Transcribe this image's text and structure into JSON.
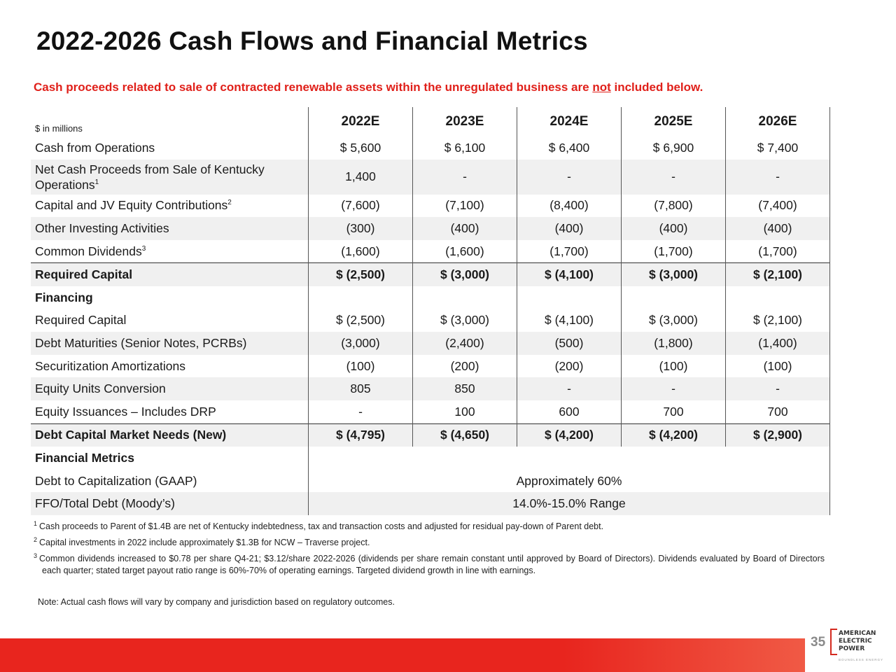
{
  "title": "2022-2026 Cash Flows and Financial Metrics",
  "subtitle": {
    "before": "Cash proceeds related to sale of contracted renewable assets within the unregulated business are ",
    "underlined": "not",
    "after": " included below."
  },
  "table": {
    "unit_label": "$ in millions",
    "columns": [
      "2022E",
      "2023E",
      "2024E",
      "2025E",
      "2026E"
    ],
    "rows": [
      {
        "label": "Cash from Operations",
        "sup": "",
        "values": [
          "$ 5,600",
          "$ 6,100",
          "$ 6,400",
          "$ 6,900",
          "$ 7,400"
        ]
      },
      {
        "label": "Net Cash Proceeds from Sale of Kentucky Operations",
        "sup": "1",
        "values": [
          "1,400",
          "-",
          "-",
          "-",
          "-"
        ]
      },
      {
        "label": "Capital and JV Equity Contributions",
        "sup": "2",
        "values": [
          "(7,600)",
          "(7,100)",
          "(8,400)",
          "(7,800)",
          "(7,400)"
        ]
      },
      {
        "label": "Other Investing Activities",
        "sup": "",
        "values": [
          "(300)",
          "(400)",
          "(400)",
          "(400)",
          "(400)"
        ]
      },
      {
        "label": "Common Dividends",
        "sup": "3",
        "values": [
          "(1,600)",
          "(1,600)",
          "(1,700)",
          "(1,700)",
          "(1,700)"
        ]
      },
      {
        "label": "Required Capital",
        "sup": "",
        "values": [
          "$ (2,500)",
          "$ (3,000)",
          "$ (4,100)",
          "$ (3,000)",
          "$ (2,100)"
        ]
      },
      {
        "label": "Financing",
        "sup": "",
        "values": [
          "",
          "",
          "",
          "",
          ""
        ]
      },
      {
        "label": "Required Capital",
        "sup": "",
        "values": [
          "$ (2,500)",
          "$ (3,000)",
          "$ (4,100)",
          "$ (3,000)",
          "$ (2,100)"
        ]
      },
      {
        "label": "Debt Maturities (Senior Notes, PCRBs)",
        "sup": "",
        "values": [
          "(3,000)",
          "(2,400)",
          "(500)",
          "(1,800)",
          "(1,400)"
        ]
      },
      {
        "label": "Securitization Amortizations",
        "sup": "",
        "values": [
          "(100)",
          "(200)",
          "(200)",
          "(100)",
          "(100)"
        ]
      },
      {
        "label": "Equity Units Conversion",
        "sup": "",
        "values": [
          "805",
          "850",
          "-",
          "-",
          "-"
        ]
      },
      {
        "label": "Equity Issuances – Includes DRP",
        "sup": "",
        "values": [
          "-",
          "100",
          "600",
          "700",
          "700"
        ]
      },
      {
        "label": "Debt Capital Market Needs (New)",
        "sup": "",
        "values": [
          "$ (4,795)",
          "$ (4,650)",
          "$ (4,200)",
          "$ (4,200)",
          "$ (2,900)"
        ]
      },
      {
        "label": "Financial Metrics",
        "sup": "",
        "values": []
      },
      {
        "label": "Debt to Capitalization (GAAP)",
        "sup": "",
        "span_value": "Approximately 60%"
      },
      {
        "label": "FFO/Total Debt (Moody’s)",
        "sup": "",
        "span_value": "14.0%-15.0% Range"
      }
    ]
  },
  "footnotes": [
    {
      "num": "1",
      "text": "Cash proceeds to Parent of $1.4B are net of Kentucky indebtedness, tax and transaction costs and adjusted for residual pay-down of Parent debt."
    },
    {
      "num": "2",
      "text": "Capital investments in 2022 include approximately $1.3B for NCW – Traverse project."
    },
    {
      "num": "3",
      "text": "Common dividends increased to $0.78 per share Q4-21; $3.12/share 2022-2026 (dividends per share remain constant until approved by Board of Directors). Dividends evaluated by Board of Directors each quarter; stated target payout ratio range is 60%-70% of operating earnings. Targeted dividend growth in line with earnings."
    }
  ],
  "disclaimer": "Note: Actual cash flows will vary by company and jurisdiction based on regulatory outcomes.",
  "page_number": "35",
  "logo": {
    "line1": "AMERICAN",
    "line2": "ELECTRIC",
    "line3": "POWER",
    "tagline": "BOUNDLESS ENERGY"
  },
  "colors": {
    "accent_red": "#e0201a",
    "footer_red": "#e8251e",
    "row_shade": "#f0f0f0"
  }
}
